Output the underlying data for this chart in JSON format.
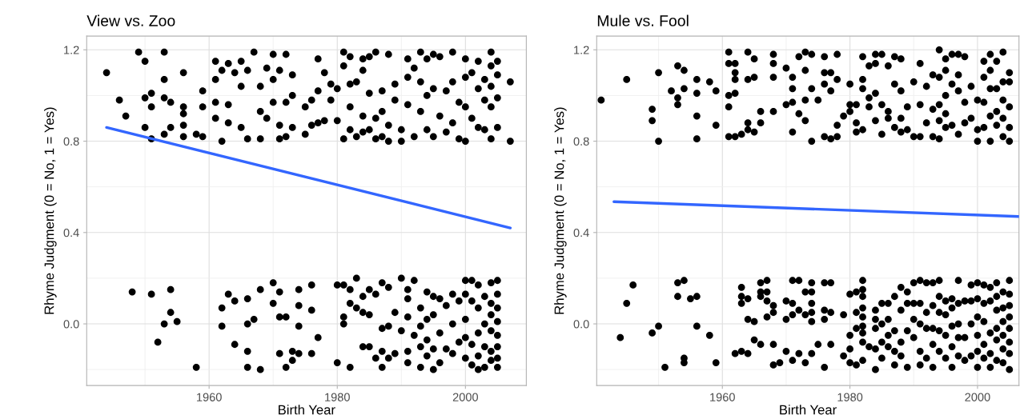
{
  "chart_data": [
    {
      "type": "scatter",
      "title": "View vs. Zoo",
      "xlabel": "Birth Year",
      "ylabel": "Rhyme Judgment (0 = No, 1 = Yes)",
      "grid": true,
      "xlim": [
        1940.9,
        2009.5
      ],
      "xticks": [
        {
          "value": 1950,
          "label": null
        },
        1960,
        {
          "value": 1970,
          "label": null
        },
        1980,
        {
          "value": 1990,
          "label": null
        },
        2000
      ],
      "ylim": [
        -0.27,
        1.26
      ],
      "yticks": [
        {
          "value": -0.2,
          "label": null
        },
        {
          "value": 0,
          "label": "0.0"
        },
        {
          "value": 0.2,
          "label": null
        },
        {
          "value": 0.4,
          "label": "0.4"
        },
        {
          "value": 0.6,
          "label": null
        },
        {
          "value": 0.8,
          "label": "0.8"
        },
        {
          "value": 1.0,
          "label": null
        },
        {
          "value": 1.2,
          "label": "1.2"
        }
      ],
      "series": [
        {
          "marker": "circle",
          "color": "#000000",
          "x": [
            1944,
            1946,
            1947,
            1949,
            1950,
            1950,
            1950,
            1951,
            1951,
            1951,
            1953,
            1953,
            1953,
            1953,
            1954,
            1954,
            1956,
            1956,
            1956,
            1956,
            1956,
            1958,
            1959,
            1959,
            1959,
            1961,
            1961,
            1961,
            1961,
            1962,
            1962,
            1963,
            1963,
            1963,
            1964,
            1965,
            1965,
            1965,
            1966,
            1966,
            1967,
            1968,
            1968,
            1968,
            1969,
            1969,
            1970,
            1970,
            1970,
            1971,
            1971,
            1971,
            1972,
            1972,
            1972,
            1973,
            1973,
            1973,
            1975,
            1975,
            1976,
            1976,
            1977,
            1977,
            1977,
            1978,
            1978,
            1979,
            1979,
            1980,
            1980,
            1981,
            1981,
            1981,
            1982,
            1982,
            1982,
            1982,
            1983,
            1983,
            1984,
            1984,
            1984,
            1984,
            1985,
            1985,
            1985,
            1986,
            1986,
            1986,
            1987,
            1987,
            1987,
            1988,
            1988,
            1988,
            1989,
            1989,
            1990,
            1990,
            1991,
            1991,
            1991,
            1992,
            1992,
            1993,
            1993,
            1993,
            1994,
            1994,
            1994,
            1995,
            1995,
            1995,
            1996,
            1996,
            1997,
            1997,
            1998,
            1998,
            1998,
            1999,
            1999,
            2000,
            2000,
            2000,
            2000,
            2001,
            2001,
            2002,
            2002,
            2002,
            2003,
            2003,
            2003,
            2004,
            2004,
            2004,
            2004,
            2004,
            2005,
            2005,
            2005,
            2005,
            2007,
            2007,
            1948,
            1951,
            1952,
            1953,
            1954,
            1954,
            1955,
            1958,
            1962,
            1962,
            1963,
            1964,
            1964,
            1966,
            1966,
            1966,
            1966,
            1967,
            1968,
            1968,
            1970,
            1970,
            1971,
            1971,
            1971,
            1972,
            1972,
            1973,
            1973,
            1974,
            1974,
            1974,
            1974,
            1976,
            1976,
            1976,
            1977,
            1980,
            1980,
            1981,
            1981,
            1981,
            1982,
            1982,
            1982,
            1983,
            1983,
            1984,
            1984,
            1984,
            1985,
            1985,
            1985,
            1986,
            1986,
            1987,
            1987,
            1987,
            1987,
            1988,
            1988,
            1988,
            1989,
            1989,
            1990,
            1990,
            1991,
            1991,
            1991,
            1991,
            1991,
            1992,
            1992,
            1993,
            1993,
            1993,
            1993,
            1994,
            1994,
            1994,
            1994,
            1995,
            1995,
            1995,
            1995,
            1996,
            1996,
            1996,
            1997,
            1997,
            1998,
            1998,
            1998,
            1999,
            1999,
            2000,
            2000,
            2000,
            2000,
            2000,
            2001,
            2001,
            2001,
            2001,
            2002,
            2002,
            2002,
            2002,
            2002,
            2003,
            2003,
            2003,
            2003,
            2004,
            2004,
            2004,
            2004,
            2004,
            2004,
            2005,
            2005,
            2005,
            2005,
            2005,
            2005,
            2005,
            2005
          ],
          "values": [
            1.1,
            0.98,
            0.91,
            1.19,
            1.15,
            0.99,
            0.86,
            1.01,
            0.95,
            0.81,
            1.19,
            1.07,
            0.99,
            0.83,
            0.97,
            0.86,
            1.1,
            0.95,
            0.92,
            0.87,
            0.82,
            0.83,
            1.02,
            0.95,
            0.82,
            1.15,
            1.07,
            0.97,
            0.9,
            1.11,
            0.8,
            1.14,
            0.96,
            0.88,
            1.1,
            1.15,
            1.04,
            0.86,
            1.11,
            0.81,
            1.19,
            1.04,
            0.93,
            0.81,
            1.12,
            0.9,
            1.18,
            1.07,
            0.97,
            1.11,
            0.87,
            0.81,
            1.18,
            0.97,
            0.82,
            1.09,
            1.0,
            0.86,
            0.95,
            0.83,
            0.98,
            0.87,
            1.16,
            1.02,
            0.88,
            1.1,
            0.89,
            1.05,
            0.98,
            1.03,
            0.89,
            1.19,
            1.13,
            0.81,
            1.17,
            1.05,
            0.95,
            0.85,
            1.06,
            0.82,
            1.16,
            1.11,
            0.91,
            0.84,
            1.17,
            1.01,
            0.85,
            1.19,
            0.9,
            0.81,
            1.02,
            0.93,
            0.82,
            1.18,
            0.87,
            0.8,
            1.05,
            0.98,
            0.85,
            0.8,
            1.16,
            1.08,
            0.96,
            1.12,
            0.82,
            1.19,
            1.06,
            0.93,
            1.16,
            1.0,
            0.85,
            1.18,
            1.03,
            0.82,
            1.17,
            0.91,
            0.84,
            1.02,
            1.19,
            1.06,
            0.88,
            0.97,
            0.81,
            1.16,
            1.08,
            0.95,
            0.8,
            1.1,
            0.9,
            1.15,
            1.03,
            0.86,
            1.07,
            0.98,
            0.85,
            1.19,
            1.13,
            1.04,
            0.95,
            0.81,
            1.15,
            1.09,
            0.99,
            0.86,
            1.06,
            0.8,
            0.14,
            0.13,
            -0.08,
            0.0,
            0.15,
            0.05,
            0.01,
            -0.19,
            0.07,
            -0.01,
            0.13,
            0.1,
            -0.09,
            0.11,
            0.0,
            -0.12,
            -0.19,
            0.02,
            0.15,
            -0.2,
            0.18,
            0.09,
            0.14,
            0.03,
            -0.13,
            0.03,
            -0.19,
            -0.12,
            -0.16,
            0.15,
            0.08,
            -0.01,
            -0.13,
            0.17,
            0.06,
            -0.13,
            -0.06,
            0.17,
            -0.17,
            0.17,
            0.03,
            0.0,
            0.15,
            0.09,
            -0.19,
            0.2,
            0.07,
            0.12,
            0.05,
            -0.1,
            0.15,
            0.04,
            -0.1,
            0.13,
            -0.15,
            0.18,
            -0.02,
            -0.12,
            -0.19,
            0.16,
            -0.01,
            -0.15,
            0.05,
            -0.13,
            0.2,
            -0.03,
            0.15,
            0.11,
            0.03,
            -0.12,
            -0.17,
            0.19,
            -0.05,
            0.07,
            -0.01,
            -0.1,
            -0.19,
            0.14,
            0.02,
            -0.07,
            -0.14,
            0.12,
            0.04,
            -0.11,
            -0.2,
            0.11,
            -0.04,
            -0.17,
            0.08,
            -0.11,
            0.13,
            0.0,
            -0.13,
            0.1,
            -0.08,
            0.19,
            0.13,
            0.02,
            -0.06,
            -0.15,
            0.19,
            0.1,
            -0.09,
            -0.18,
            0.17,
            0.07,
            -0.04,
            -0.14,
            -0.2,
            0.12,
            0.0,
            -0.1,
            -0.19,
            0.18,
            0.09,
            0.04,
            -0.03,
            -0.12,
            -0.16,
            0.19,
            0.13,
            0.07,
            0.01,
            -0.05,
            -0.1,
            -0.15,
            -0.19
          ]
        },
        {
          "type": "line",
          "color": "#3366ff",
          "x": [
            1944,
            2007
          ],
          "values": [
            0.86,
            0.42
          ]
        }
      ]
    },
    {
      "type": "scatter",
      "title": "Mule vs. Fool",
      "xlabel": "Birth Year",
      "ylabel": "Rhyme Judgment (0 = No, 1 = Yes)",
      "grid": true,
      "xlim": [
        1940.3,
        2006.5
      ],
      "xticks": [
        {
          "value": 1950,
          "label": null
        },
        1960,
        {
          "value": 1970,
          "label": null
        },
        1980,
        {
          "value": 1990,
          "label": null
        },
        2000
      ],
      "ylim": [
        -0.27,
        1.26
      ],
      "yticks": [
        {
          "value": -0.2,
          "label": null
        },
        {
          "value": 0,
          "label": "0.0"
        },
        {
          "value": 0.2,
          "label": null
        },
        {
          "value": 0.4,
          "label": "0.4"
        },
        {
          "value": 0.6,
          "label": null
        },
        {
          "value": 0.8,
          "label": "0.8"
        },
        {
          "value": 1.0,
          "label": null
        },
        {
          "value": 1.2,
          "label": "1.2"
        }
      ],
      "series": [
        {
          "marker": "circle",
          "color": "#000000",
          "x": [
            1941,
            1945,
            1949,
            1949,
            1950,
            1950,
            1952,
            1953,
            1953,
            1953,
            1954,
            1954,
            1956,
            1956,
            1956,
            1956,
            1958,
            1959,
            1959,
            1961,
            1961,
            1961,
            1961,
            1961,
            1962,
            1962,
            1962,
            1962,
            1962,
            1963,
            1964,
            1964,
            1964,
            1964,
            1965,
            1965,
            1965,
            1966,
            1966,
            1968,
            1968,
            1968,
            1968,
            1970,
            1970,
            1971,
            1971,
            1971,
            1971,
            1972,
            1972,
            1973,
            1973,
            1973,
            1973,
            1974,
            1974,
            1974,
            1975,
            1976,
            1976,
            1976,
            1976,
            1977,
            1977,
            1977,
            1978,
            1978,
            1978,
            1978,
            1979,
            1980,
            1980,
            1980,
            1981,
            1981,
            1981,
            1982,
            1982,
            1982,
            1982,
            1983,
            1983,
            1983,
            1984,
            1984,
            1984,
            1984,
            1985,
            1985,
            1985,
            1986,
            1986,
            1986,
            1987,
            1987,
            1987,
            1988,
            1988,
            1988,
            1988,
            1989,
            1989,
            1990,
            1990,
            1991,
            1991,
            1991,
            1992,
            1992,
            1993,
            1993,
            1993,
            1994,
            1994,
            1994,
            1994,
            1994,
            1995,
            1995,
            1995,
            1995,
            1995,
            1996,
            1996,
            1996,
            1997,
            1997,
            1997,
            1997,
            1998,
            1998,
            1998,
            1999,
            1999,
            2000,
            2000,
            2000,
            2001,
            2001,
            2001,
            2001,
            2002,
            2002,
            2002,
            2002,
            2002,
            2003,
            2003,
            2003,
            2003,
            2004,
            2004,
            2004,
            2004,
            2004,
            2005,
            2005,
            2005,
            2005,
            2005,
            1944,
            1945,
            1946,
            1949,
            1950,
            1951,
            1953,
            1953,
            1954,
            1954,
            1954,
            1955,
            1956,
            1956,
            1958,
            1959,
            1963,
            1963,
            1963,
            1962,
            1963,
            1964,
            1964,
            1964,
            1965,
            1965,
            1966,
            1966,
            1966,
            1966,
            1967,
            1967,
            1967,
            1967,
            1968,
            1968,
            1968,
            1968,
            1969,
            1970,
            1970,
            1970,
            1971,
            1971,
            1971,
            1971,
            1972,
            1972,
            1972,
            1973,
            1973,
            1973,
            1974,
            1974,
            1974,
            1974,
            1974,
            1974,
            1975,
            1976,
            1976,
            1976,
            1976,
            1977,
            1977,
            1977,
            1979,
            1979,
            1980,
            1980,
            1980,
            1980,
            1981,
            1981,
            1981,
            1981,
            1982,
            1982,
            1982,
            1982,
            1982,
            1982,
            1982,
            1982,
            1982,
            1983,
            1984,
            1984,
            1984,
            1984,
            1984,
            1985,
            1985,
            1985,
            1985,
            1986,
            1986,
            1986,
            1986,
            1987,
            1987,
            1987,
            1987,
            1988,
            1988,
            1988,
            1988,
            1989,
            1989,
            1989,
            1989,
            1990,
            1990,
            1990,
            1990,
            1991,
            1991,
            1991,
            1991,
            1991,
            1992,
            1992,
            1992,
            1992,
            1993,
            1993,
            1993,
            1993,
            1993,
            1994,
            1994,
            1994,
            1994,
            1994,
            1995,
            1995,
            1995,
            1995,
            1996,
            1996,
            1996,
            1996,
            1996,
            1997,
            1997,
            1997,
            1997,
            1997,
            1998,
            1998,
            1998,
            1999,
            1999,
            1999,
            1999,
            2000,
            2000,
            2000,
            2000,
            2000,
            2000,
            2001,
            2001,
            2001,
            2001,
            2001,
            2002,
            2002,
            2002,
            2002,
            2002,
            2003,
            2003,
            2003,
            2003,
            2003,
            2003,
            2004,
            2004,
            2004,
            2004,
            2004,
            2004,
            2005,
            2005,
            2005,
            2005,
            2005,
            2005,
            2005,
            2005
          ],
          "values": [
            0.98,
            1.07,
            0.94,
            0.89,
            1.1,
            0.8,
            1.02,
            1.13,
            0.99,
            0.96,
            1.11,
            1.03,
            1.07,
            1.01,
            0.91,
            0.81,
            1.06,
            1.02,
            0.87,
            1.19,
            1.14,
            1.0,
            0.95,
            0.82,
            1.14,
            1.1,
            1.07,
            1.01,
            0.82,
            0.83,
            1.19,
            1.07,
            0.88,
            0.85,
            1.16,
            1.08,
            0.84,
            0.93,
            0.88,
            1.18,
            1.14,
            1.08,
            0.93,
            1.12,
            0.96,
            1.08,
            1.03,
            0.97,
            0.84,
            1.17,
            0.92,
            1.19,
            1.11,
            0.98,
            0.89,
            1.18,
            1.03,
            0.8,
            0.98,
            1.17,
            1.1,
            1.05,
            0.82,
            1.1,
            1.02,
            0.81,
            1.18,
            1.07,
            0.87,
            0.82,
            0.91,
            1.05,
            0.96,
            0.93,
            0.96,
            0.88,
            0.84,
            1.17,
            1.07,
            1.03,
            0.85,
            1.13,
            0.99,
            0.95,
            1.18,
            1.14,
            1.01,
            0.89,
            1.18,
            0.96,
            0.83,
            1.13,
            0.93,
            0.9,
            1.17,
            1.05,
            0.86,
            1.16,
            1.02,
            0.9,
            0.84,
            0.95,
            0.85,
            1.06,
            0.82,
            1.14,
            0.96,
            0.82,
            1.04,
            0.88,
            1.09,
            0.94,
            0.82,
            1.2,
            1.08,
            0.96,
            0.89,
            0.81,
            1.16,
            1.11,
            1.0,
            0.92,
            0.86,
            1.18,
            1.05,
            0.87,
            1.18,
            1.09,
            1.02,
            0.83,
            1.17,
            0.97,
            0.88,
            1.04,
            0.9,
            0.98,
            0.85,
            0.8,
            1.15,
            1.08,
            0.97,
            0.86,
            1.18,
            1.11,
            1.03,
            0.91,
            0.8,
            1.15,
            1.03,
            0.93,
            0.87,
            1.19,
            1.06,
            0.98,
            0.9,
            0.82,
            1.1,
            1.06,
            0.95,
            0.86,
            0.8,
            -0.06,
            0.09,
            0.17,
            -0.04,
            -0.01,
            -0.19,
            0.18,
            0.12,
            0.19,
            -0.15,
            -0.17,
            0.11,
            0.12,
            -0.01,
            -0.05,
            -0.17,
            0.16,
            0.12,
            0.09,
            -0.13,
            -0.12,
            0.11,
            0.02,
            -0.13,
            0.01,
            -0.07,
            0.18,
            0.14,
            0.12,
            -0.09,
            0.19,
            0.14,
            0.1,
            0.03,
            0.08,
            0.05,
            -0.09,
            -0.18,
            -0.17,
            0.1,
            0.02,
            -0.12,
            0.19,
            0.09,
            0.04,
            -0.16,
            0.19,
            0.06,
            -0.13,
            0.14,
            0.04,
            -0.17,
            0.18,
            0.14,
            0.09,
            0.05,
            0.01,
            -0.13,
            -0.09,
            0.18,
            0.06,
            0.02,
            -0.19,
            0.18,
            0.05,
            -0.09,
            0.04,
            -0.14,
            0.13,
            -0.05,
            -0.11,
            -0.17,
            0.14,
            0.05,
            -0.02,
            -0.18,
            0.19,
            0.15,
            0.12,
            0.07,
            0.03,
            -0.01,
            -0.04,
            -0.08,
            -0.16,
            -0.1,
            0.06,
            0.02,
            -0.02,
            -0.11,
            -0.2,
            0.09,
            0.0,
            -0.08,
            -0.15,
            0.09,
            0.02,
            -0.05,
            -0.1,
            0.12,
            -0.03,
            -0.12,
            -0.18,
            0.16,
            0.06,
            -0.08,
            -0.14,
            0.14,
            0.09,
            -0.03,
            -0.19,
            0.18,
            0.09,
            0.02,
            -0.06,
            0.19,
            0.09,
            0.0,
            -0.12,
            -0.18,
            0.18,
            0.05,
            -0.02,
            -0.15,
            0.18,
            0.08,
            -0.02,
            -0.09,
            -0.19,
            0.19,
            0.12,
            0.05,
            -0.03,
            -0.12,
            0.1,
            0.04,
            -0.05,
            -0.15,
            0.11,
            0.07,
            -0.01,
            -0.1,
            -0.19,
            0.19,
            0.09,
            0.0,
            -0.06,
            -0.14,
            0.1,
            -0.06,
            -0.16,
            0.17,
            0.1,
            0.0,
            -0.14,
            0.18,
            0.11,
            0.03,
            -0.05,
            -0.12,
            -0.19,
            0.17,
            0.09,
            0.01,
            -0.09,
            -0.15,
            0.16,
            0.1,
            -0.04,
            -0.13,
            -0.19,
            0.18,
            0.12,
            0.06,
            -0.02,
            -0.07,
            -0.16,
            0.14,
            0.07,
            0.01,
            -0.05,
            -0.11,
            -0.17,
            0.19,
            0.13,
            0.08,
            0.03,
            -0.02,
            -0.08,
            -0.13,
            -0.2
          ]
        },
        {
          "type": "line",
          "color": "#3366ff",
          "x": [
            1943,
            2006.5
          ],
          "values": [
            0.535,
            0.47
          ]
        }
      ]
    }
  ]
}
